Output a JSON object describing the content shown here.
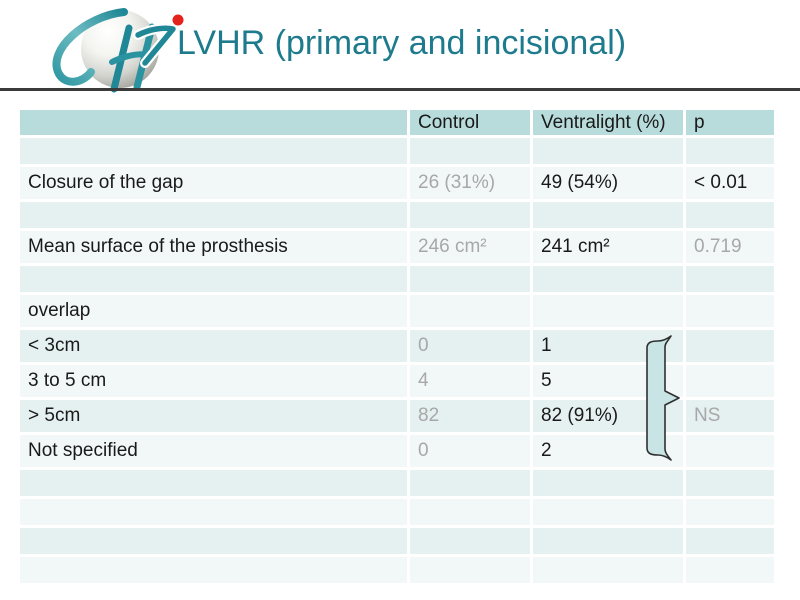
{
  "slide": {
    "title": "LVHR (primary and incisional)",
    "logo_name": "CH hospital logo (teal CH monogram, sphere, red dot)"
  },
  "colors": {
    "title_teal": "#1e7b8d",
    "header_teal": "#b8dbdb",
    "band_dark": "#e5f0f1",
    "band_light": "#f2f8f8",
    "divider_dark": "#3a3a3a",
    "muted_gray": "#a8a8a8",
    "text_black": "#1a1a1a",
    "brace_fill": "#c8e4e5",
    "logo_teal": "#1f8795",
    "logo_red": "#e3231c"
  },
  "table": {
    "columns": [
      "",
      "Control",
      "Ventralight (%)",
      "p"
    ],
    "rows": [
      {
        "kind": "empty",
        "label": "",
        "control": "",
        "ventralight": "",
        "p": "",
        "indent": false,
        "ventralight_bold": false,
        "p_style": ""
      },
      {
        "kind": "data",
        "label": "Closure of the gap",
        "control": "26 (31%)",
        "ventralight": "49 (54%)",
        "p": "< 0.01",
        "indent": false,
        "ventralight_bold": true,
        "p_style": "bold"
      },
      {
        "kind": "empty",
        "label": "",
        "control": "",
        "ventralight": "",
        "p": "",
        "indent": false,
        "ventralight_bold": false,
        "p_style": ""
      },
      {
        "kind": "data",
        "label": "Mean surface of the prosthesis",
        "control": "246 cm²",
        "ventralight": "241 cm²",
        "p": "0.719",
        "indent": false,
        "ventralight_bold": false,
        "p_style": "muted"
      },
      {
        "kind": "empty",
        "label": "",
        "control": "",
        "ventralight": "",
        "p": "",
        "indent": false,
        "ventralight_bold": false,
        "p_style": ""
      },
      {
        "kind": "data",
        "label": "overlap",
        "control": "",
        "ventralight": "",
        "p": "",
        "indent": false,
        "ventralight_bold": false,
        "p_style": ""
      },
      {
        "kind": "data",
        "label": "< 3cm",
        "control": "0",
        "ventralight": "1",
        "p": "",
        "indent": true,
        "ventralight_bold": false,
        "p_style": ""
      },
      {
        "kind": "data",
        "label": "3 to 5 cm",
        "control": "4",
        "ventralight": "5",
        "p": "",
        "indent": true,
        "ventralight_bold": false,
        "p_style": ""
      },
      {
        "kind": "data",
        "label": "> 5cm",
        "control": "82",
        "ventralight": "82 (91%)",
        "p": "NS",
        "indent": true,
        "ventralight_bold": false,
        "p_style": "muted"
      },
      {
        "kind": "data",
        "label": "Not specified",
        "control": "0",
        "ventralight": "2",
        "p": "",
        "indent": true,
        "ventralight_bold": false,
        "p_style": ""
      },
      {
        "kind": "empty",
        "label": "",
        "control": "",
        "ventralight": "",
        "p": "",
        "indent": false,
        "ventralight_bold": false,
        "p_style": ""
      },
      {
        "kind": "empty",
        "label": "",
        "control": "",
        "ventralight": "",
        "p": "",
        "indent": false,
        "ventralight_bold": false,
        "p_style": ""
      },
      {
        "kind": "empty",
        "label": "",
        "control": "",
        "ventralight": "",
        "p": "",
        "indent": false,
        "ventralight_bold": false,
        "p_style": ""
      },
      {
        "kind": "empty",
        "label": "",
        "control": "",
        "ventralight": "",
        "p": "",
        "indent": false,
        "ventralight_bold": false,
        "p_style": ""
      }
    ]
  },
  "annotation": {
    "shape": "right-curly-brace",
    "groups_rows": [
      "< 3cm",
      "3 to 5 cm",
      "> 5cm",
      "Not specified"
    ],
    "points_to": "NS"
  }
}
